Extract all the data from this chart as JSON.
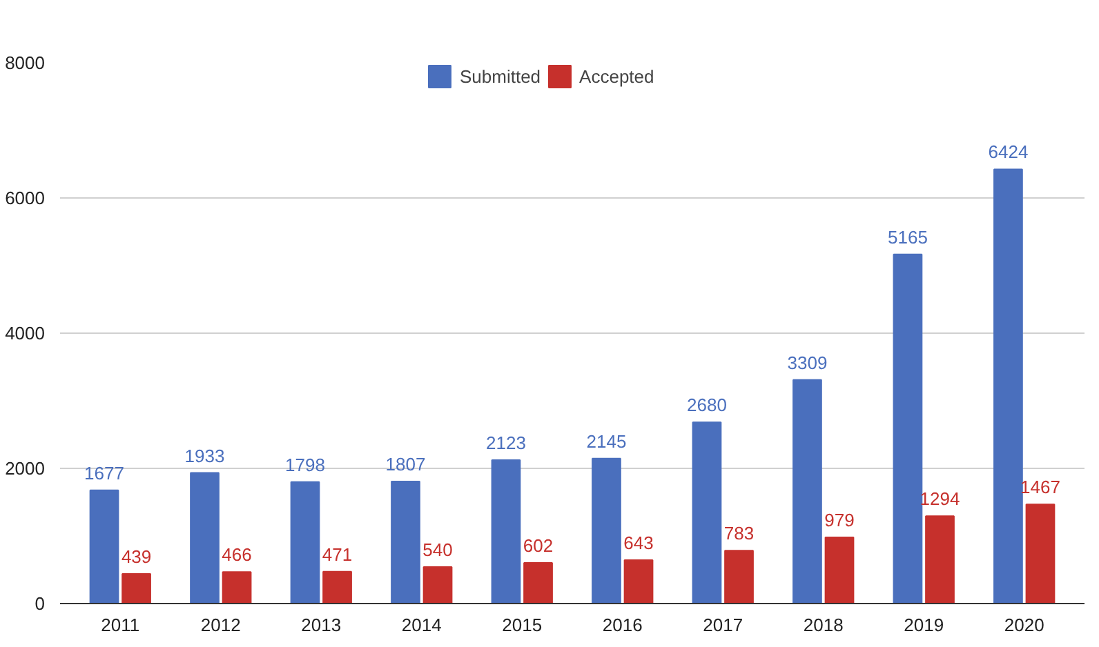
{
  "chart_data": {
    "type": "bar",
    "categories": [
      "2011",
      "2012",
      "2013",
      "2014",
      "2015",
      "2016",
      "2017",
      "2018",
      "2019",
      "2020"
    ],
    "series": [
      {
        "name": "Submitted",
        "color": "#4a6fbd",
        "values": [
          1677,
          1933,
          1798,
          1807,
          2123,
          2145,
          2680,
          3309,
          5165,
          6424
        ]
      },
      {
        "name": "Accepted",
        "color": "#c6302c",
        "values": [
          439,
          466,
          471,
          540,
          602,
          643,
          783,
          979,
          1294,
          1467
        ]
      }
    ],
    "ylim": [
      0,
      8000
    ],
    "yticks": [
      0,
      2000,
      4000,
      6000,
      8000
    ],
    "grid": "y",
    "legend": "top",
    "data_labels": true
  }
}
